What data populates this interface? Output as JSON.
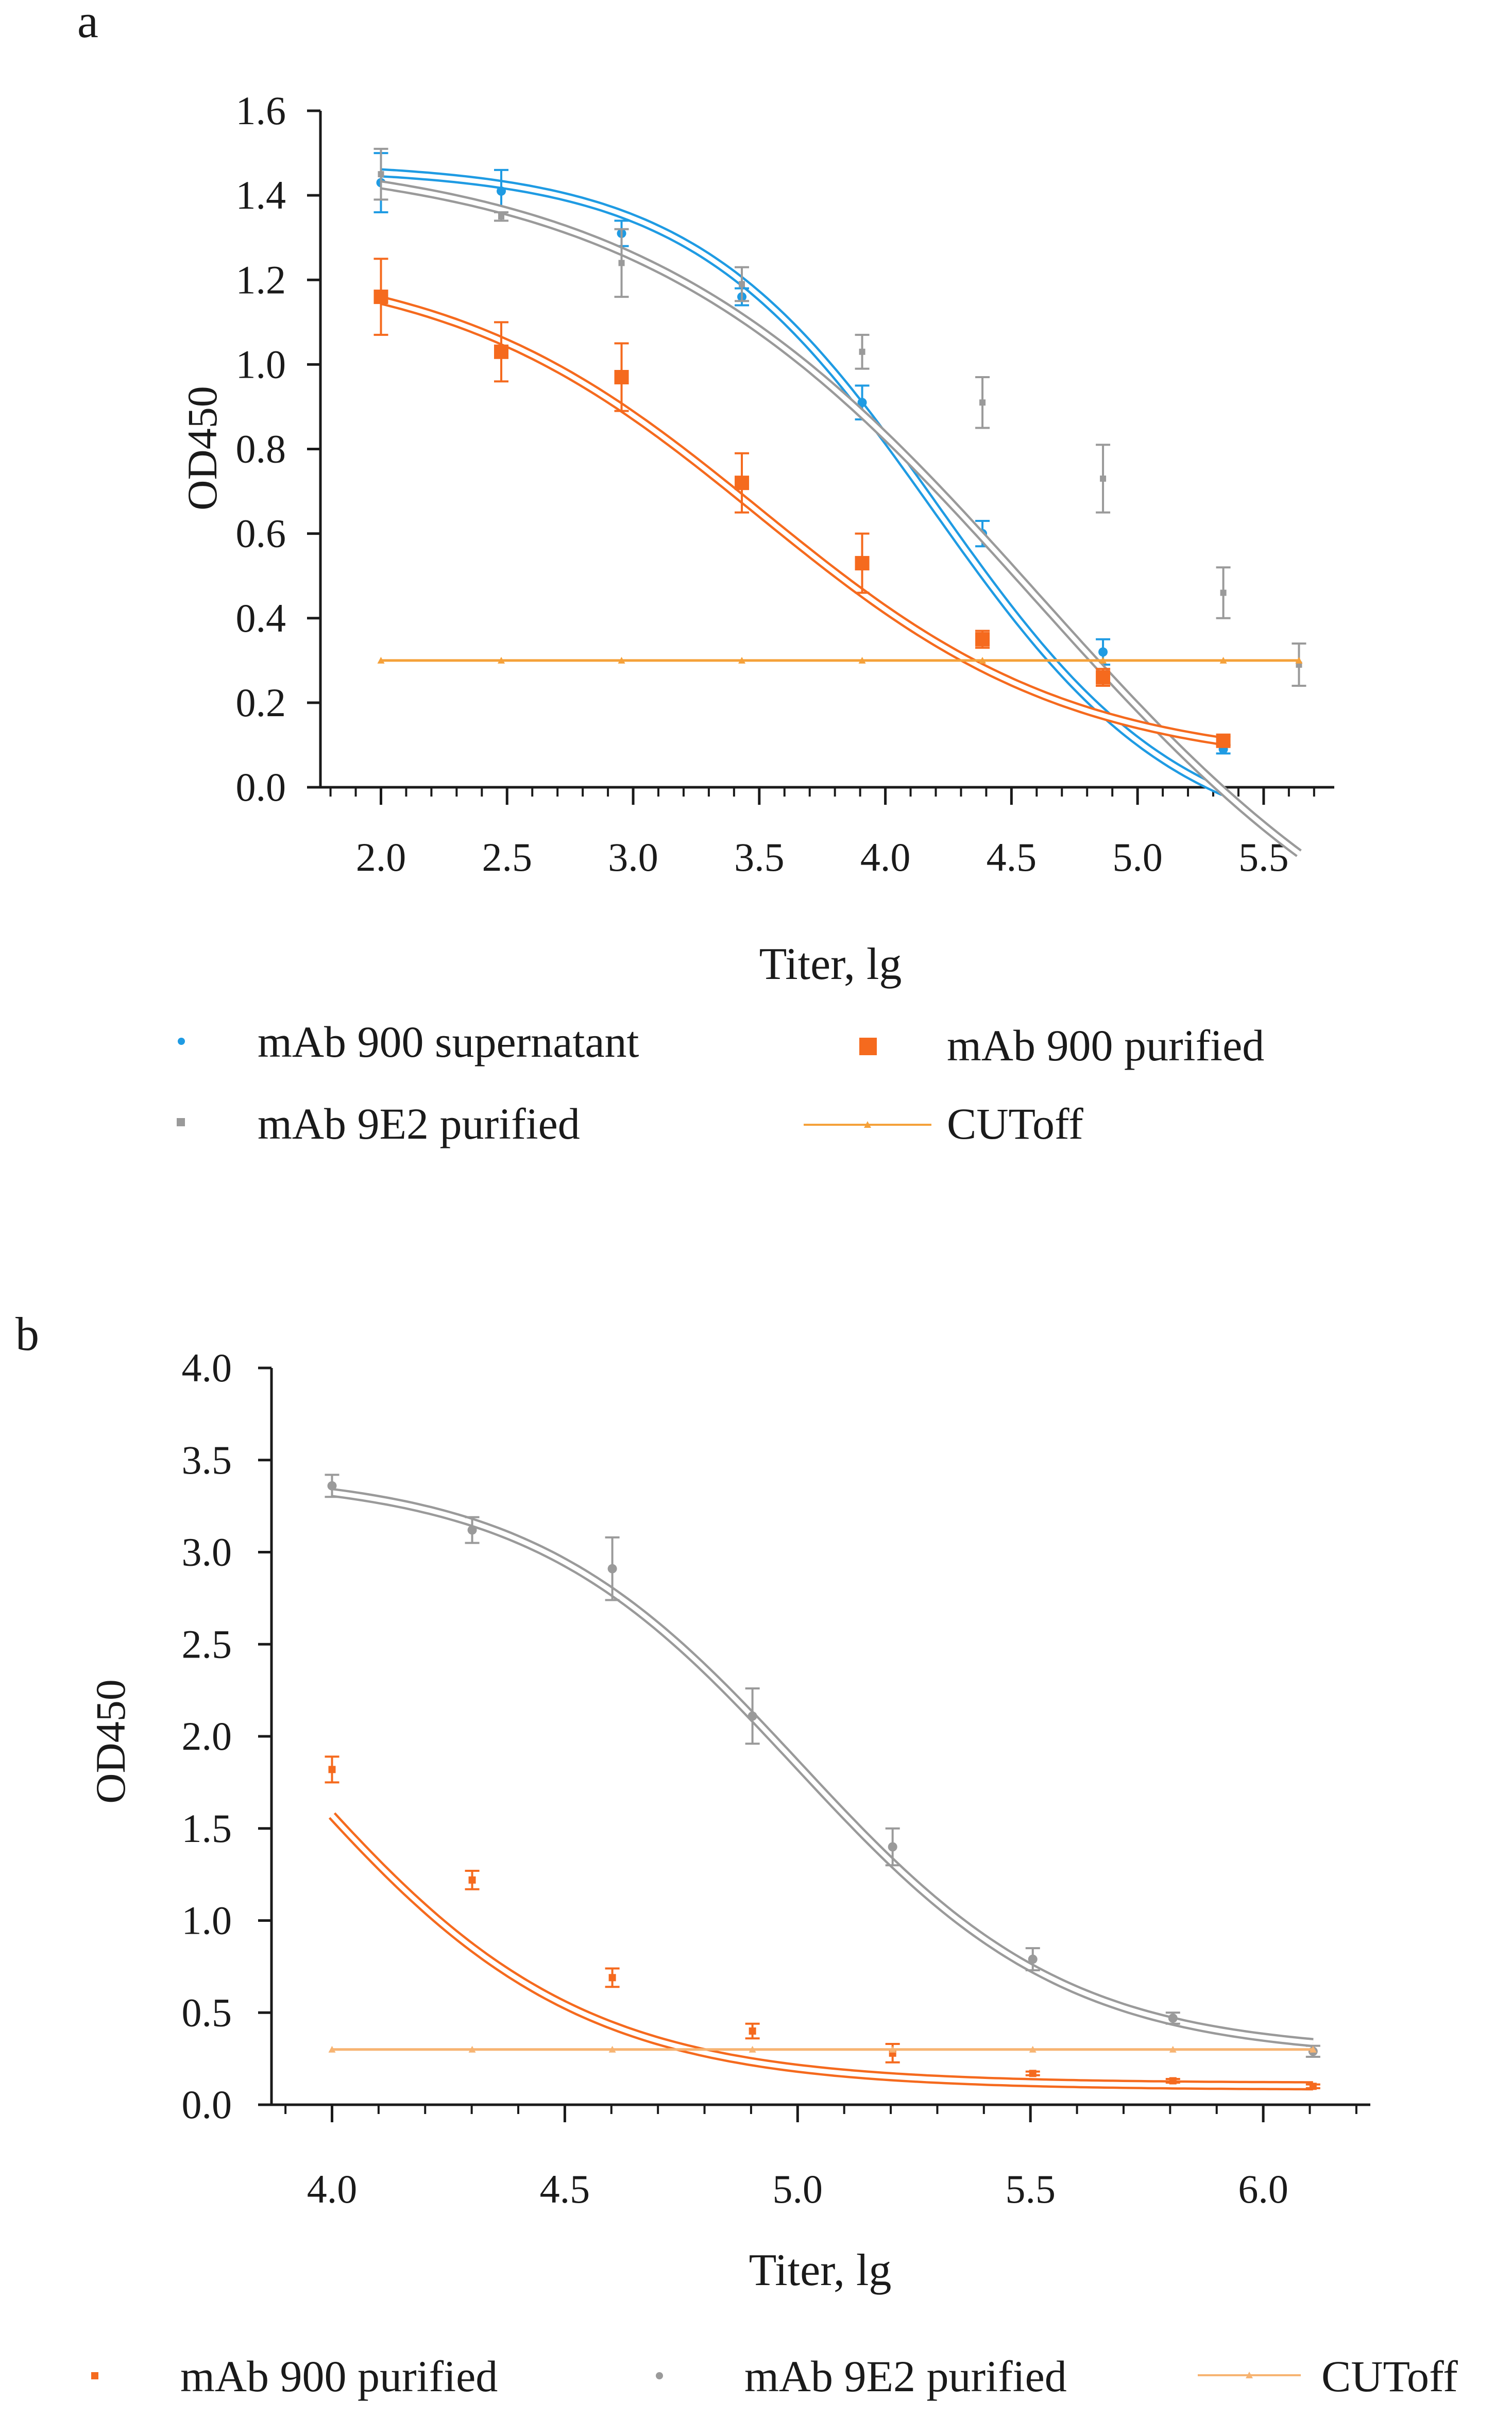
{
  "panels": [
    "a",
    "b"
  ],
  "colors": {
    "axis": "#1a1a1a",
    "blue": "#1f9be3",
    "gray": "#9a9a9a",
    "orange": "#f56a1e",
    "cutoff": "#f5a13a",
    "cutoff_light": "#f7b472"
  },
  "chart_data": [
    {
      "panel": "a",
      "type": "line",
      "xlabel": "Titer, lg",
      "ylabel": "OD450",
      "xlim": [
        1.76,
        5.78
      ],
      "ylim": [
        0,
        1.6
      ],
      "xticks": [
        "2.0",
        "2.5",
        "3.0",
        "3.5",
        "4.0",
        "4.5",
        "5.0",
        "5.5"
      ],
      "xtick_values": [
        2.0,
        2.5,
        3.0,
        3.5,
        4.0,
        4.5,
        5.0,
        5.5
      ],
      "xminor_step": 0.1,
      "yticks": [
        "0.0",
        "0.2",
        "0.4",
        "0.6",
        "0.8",
        "1.0",
        "1.2",
        "1.4",
        "1.6"
      ],
      "ytick_values": [
        0.0,
        0.2,
        0.4,
        0.6,
        0.8,
        1.0,
        1.2,
        1.4,
        1.6
      ],
      "legend_position": "bottom",
      "series": [
        {
          "name": "mAb 900 supernatant",
          "color": "blue",
          "marker": "dot",
          "x": [
            2.0,
            2.477,
            2.954,
            3.431,
            3.908,
            4.385,
            4.863,
            5.34
          ],
          "y": [
            1.43,
            1.41,
            1.31,
            1.16,
            0.91,
            0.6,
            0.32,
            0.09
          ],
          "err": [
            0.07,
            0.05,
            0.03,
            0.02,
            0.04,
            0.03,
            0.03,
            0.01
          ],
          "fit": {
            "bottom": -0.15,
            "top": 1.47,
            "ec50": 4.2,
            "hill": 0.9
          }
        },
        {
          "name": "mAb 9E2 purified",
          "color": "gray",
          "marker": "square_small",
          "x": [
            2.0,
            2.477,
            2.954,
            3.431,
            3.908,
            4.385,
            4.863,
            5.34,
            5.64
          ],
          "y": [
            1.45,
            1.35,
            1.24,
            1.19,
            1.03,
            0.91,
            0.73,
            0.46,
            0.29
          ],
          "err": [
            0.06,
            0.01,
            0.08,
            0.04,
            0.04,
            0.06,
            0.08,
            0.06,
            0.05
          ],
          "fit": {
            "bottom": -0.6,
            "top": 1.5,
            "ec50": 4.6,
            "hill": 0.55
          }
        },
        {
          "name": "mAb 900 purified",
          "color": "orange",
          "marker": "square",
          "x": [
            2.0,
            2.477,
            2.954,
            3.431,
            3.908,
            4.385,
            4.863,
            5.34
          ],
          "y": [
            1.16,
            1.03,
            0.97,
            0.72,
            0.53,
            0.35,
            0.26,
            0.11
          ],
          "err": [
            0.09,
            0.07,
            0.08,
            0.07,
            0.07,
            0.02,
            0.02,
            0.01
          ],
          "fit": {
            "bottom": 0.05,
            "top": 1.25,
            "ec50": 3.5,
            "hill": 0.7
          }
        },
        {
          "name": "CUToff",
          "color": "cutoff",
          "marker": "triangle",
          "x": [
            2.0,
            2.477,
            2.954,
            3.431,
            3.908,
            4.385,
            4.863,
            5.34,
            5.64
          ],
          "y": [
            0.3,
            0.3,
            0.3,
            0.3,
            0.3,
            0.3,
            0.3,
            0.3,
            0.3
          ]
        }
      ]
    },
    {
      "panel": "b",
      "type": "line",
      "xlabel": "Titer, lg",
      "ylabel": "OD450",
      "xlim": [
        3.87,
        6.23
      ],
      "ylim": [
        0,
        4.0
      ],
      "xticks": [
        "4.0",
        "4.5",
        "5.0",
        "5.5",
        "6.0"
      ],
      "xtick_values": [
        4.0,
        4.5,
        5.0,
        5.5,
        6.0
      ],
      "xminor_step": 0.1,
      "yticks": [
        "0.0",
        "0.5",
        "1.0",
        "1.5",
        "2.0",
        "2.5",
        "3.0",
        "3.5",
        "4.0"
      ],
      "ytick_values": [
        0.0,
        0.5,
        1.0,
        1.5,
        2.0,
        2.5,
        3.0,
        3.5,
        4.0
      ],
      "legend_position": "bottom",
      "series": [
        {
          "name": "mAb 900 purified",
          "color": "orange",
          "marker": "square",
          "x": [
            4.0,
            4.301,
            4.602,
            4.903,
            5.204,
            5.505,
            5.806,
            6.107
          ],
          "y": [
            1.82,
            1.22,
            0.69,
            0.4,
            0.28,
            0.17,
            0.13,
            0.1
          ],
          "err": [
            0.07,
            0.05,
            0.05,
            0.04,
            0.05,
            0.01,
            0.01,
            0.01
          ],
          "fit": {
            "bottom": 0.1,
            "top": 3.6,
            "ec50": 3.9,
            "hill": 1.4
          }
        },
        {
          "name": "mAb 9E2 purified",
          "color": "gray",
          "marker": "dot",
          "x": [
            4.0,
            4.301,
            4.602,
            4.903,
            5.204,
            5.505,
            5.806,
            6.107
          ],
          "y": [
            3.36,
            3.12,
            2.91,
            2.11,
            1.4,
            0.79,
            0.47,
            0.29
          ],
          "err": [
            0.06,
            0.07,
            0.17,
            0.15,
            0.1,
            0.06,
            0.03,
            0.03
          ],
          "fit": {
            "bottom": 0.27,
            "top": 3.42,
            "ec50": 5.0,
            "hill": 1.5
          }
        },
        {
          "name": "CUToff",
          "color": "cutoff_light",
          "marker": "triangle",
          "x": [
            4.0,
            4.301,
            4.602,
            4.903,
            5.204,
            5.505,
            5.806,
            6.107
          ],
          "y": [
            0.3,
            0.3,
            0.3,
            0.3,
            0.3,
            0.3,
            0.3,
            0.3
          ]
        }
      ]
    }
  ]
}
